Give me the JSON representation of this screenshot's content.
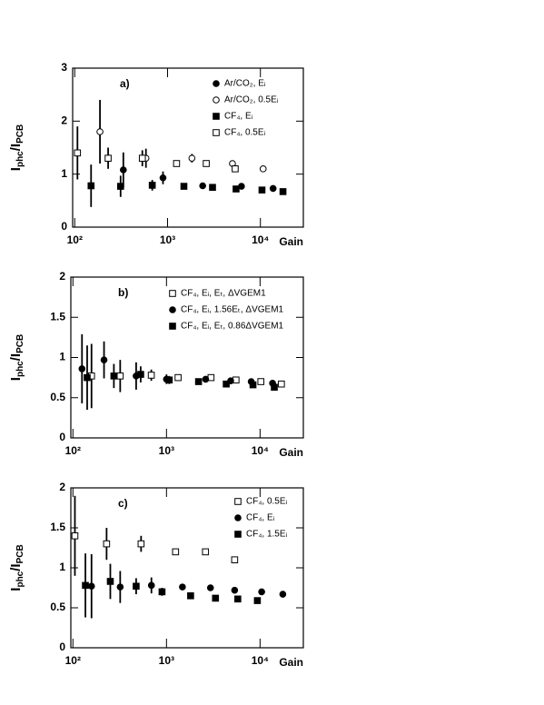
{
  "chart_data": [
    {
      "type": "scatter",
      "title": "a)",
      "xlabel": "Gain",
      "ylabel": [
        "I",
        "phc",
        "/I",
        "PCB"
      ],
      "xscale": "log",
      "xlim": [
        95,
        29000
      ],
      "ylim": [
        0,
        3
      ],
      "yticks": [
        0,
        1,
        2,
        3
      ],
      "xticks": [
        {
          "value": 100,
          "label": "10²"
        },
        {
          "value": 1000,
          "label": "10³"
        },
        {
          "value": 10000,
          "label": "10⁴"
        }
      ],
      "legend": "upper right",
      "series": [
        {
          "name": "Ar/CO₂, Eᵢ",
          "color": "#000000",
          "marker": "circle",
          "filled": true,
          "x": [
            334,
            893,
            2390,
            6250,
            13700
          ],
          "values": [
            1.08,
            0.93,
            0.78,
            0.77,
            0.73
          ],
          "errors": [
            0.33,
            0.12,
            null,
            null,
            null
          ]
        },
        {
          "name": "Ar/CO₂, 0.5Eᵢ",
          "color": "#000000",
          "marker": "circle",
          "filled": false,
          "x": [
            187,
            585,
            1830,
            5000,
            10700
          ],
          "values": [
            1.8,
            1.3,
            1.3,
            1.2,
            1.1
          ],
          "errors": [
            0.6,
            0.18,
            0.08,
            null,
            null
          ]
        },
        {
          "name": "CF₄, Eᵢ",
          "color": "#000000",
          "marker": "square",
          "filled": true,
          "x": [
            150,
            312,
            684,
            1500,
            3050,
            5470,
            10400,
            17500
          ],
          "values": [
            0.78,
            0.77,
            0.79,
            0.77,
            0.75,
            0.72,
            0.7,
            0.67
          ],
          "errors": [
            0.4,
            0.2,
            0.1,
            null,
            null,
            null,
            null,
            null
          ]
        },
        {
          "name": "CF₄, 0.5Eᵢ",
          "color": "#000000",
          "marker": "square",
          "filled": false,
          "x": [
            107,
            229,
            535,
            1250,
            2610,
            5350
          ],
          "values": [
            1.4,
            1.3,
            1.3,
            1.2,
            1.2,
            1.1
          ],
          "errors": [
            0.5,
            0.2,
            0.15,
            null,
            null,
            null
          ]
        }
      ]
    },
    {
      "type": "scatter",
      "title": "b)",
      "xlabel": "Gain",
      "ylabel": [
        "I",
        "phc",
        "/I",
        "PCB"
      ],
      "xscale": "log",
      "xlim": [
        95,
        29000
      ],
      "ylim": [
        0,
        2
      ],
      "yticks": [
        0,
        0.5,
        1,
        1.5,
        2
      ],
      "xticks": [
        {
          "value": 100,
          "label": "10²"
        },
        {
          "value": 1000,
          "label": "10³"
        },
        {
          "value": 10000,
          "label": "10⁴"
        }
      ],
      "legend": "upper right",
      "series": [
        {
          "name": "CF₄, Eᵢ, Eₜ, ΔVGEM1",
          "color": "#000000",
          "marker": "square",
          "filled": false,
          "x": [
            158,
            320,
            688,
            1330,
            2990,
            5530,
            10200,
            16900
          ],
          "values": [
            0.77,
            0.77,
            0.78,
            0.75,
            0.75,
            0.72,
            0.7,
            0.67
          ],
          "errors": [
            0.4,
            0.2,
            0.07,
            null,
            null,
            null,
            null,
            null
          ]
        },
        {
          "name": "CF₄, Eᵢ, 1.56Eₜ, ΔVGEM1",
          "color": "#000000",
          "marker": "circle",
          "filled": true,
          "x": [
            125,
            215,
            474,
            1000,
            2620,
            4850,
            8040,
            13600
          ],
          "values": [
            0.86,
            0.97,
            0.77,
            0.73,
            0.73,
            0.71,
            0.7,
            0.68
          ],
          "errors": [
            0.43,
            0.23,
            0.17,
            0.06,
            null,
            null,
            null,
            null
          ]
        },
        {
          "name": "CF₄, Eᵢ, Eₜ, 0.86ΔVGEM1",
          "color": "#000000",
          "marker": "square",
          "filled": true,
          "x": [
            142,
            274,
            530,
            1070,
            2200,
            4350,
            8400,
            14200
          ],
          "values": [
            0.75,
            0.77,
            0.79,
            0.72,
            0.7,
            0.67,
            0.66,
            0.63
          ],
          "errors": [
            0.4,
            0.15,
            0.1,
            0.05,
            null,
            null,
            null,
            null
          ]
        }
      ]
    },
    {
      "type": "scatter",
      "title": "c)",
      "xlabel": "Gain",
      "ylabel": [
        "I",
        "phc",
        "/I",
        "PCB"
      ],
      "xscale": "log",
      "xlim": [
        95,
        29000
      ],
      "ylim": [
        0,
        2
      ],
      "yticks": [
        0,
        0.5,
        1,
        1.5,
        2
      ],
      "xticks": [
        {
          "value": 100,
          "label": "10²"
        },
        {
          "value": 1000,
          "label": "10³"
        },
        {
          "value": 10000,
          "label": "10⁴"
        }
      ],
      "legend": "upper right",
      "series": [
        {
          "name": "CF₄, 0.5Eᵢ",
          "color": "#000000",
          "marker": "square",
          "filled": false,
          "x": [
            105,
            229,
            535,
            1250,
            2610,
            5350
          ],
          "values": [
            1.4,
            1.3,
            1.3,
            1.2,
            1.2,
            1.1
          ],
          "errors": [
            0.5,
            0.2,
            0.1,
            null,
            null,
            null
          ]
        },
        {
          "name": "CF₄, Eᵢ",
          "color": "#000000",
          "marker": "circle",
          "filled": true,
          "x": [
            158,
            320,
            690,
            1480,
            2950,
            5350,
            10400,
            17500
          ],
          "values": [
            0.77,
            0.76,
            0.78,
            0.76,
            0.75,
            0.72,
            0.7,
            0.67
          ],
          "errors": [
            0.4,
            0.2,
            0.1,
            null,
            null,
            null,
            null,
            null
          ]
        },
        {
          "name": "CF₄, 1.5Eᵢ",
          "color": "#000000",
          "marker": "square",
          "filled": true,
          "x": [
            136,
            251,
            474,
            896,
            1810,
            3340,
            5780,
            9360
          ],
          "values": [
            0.78,
            0.83,
            0.77,
            0.7,
            0.65,
            0.62,
            0.61,
            0.59
          ],
          "errors": [
            0.4,
            0.22,
            0.1,
            0.05,
            null,
            null,
            null,
            null
          ]
        }
      ]
    }
  ]
}
